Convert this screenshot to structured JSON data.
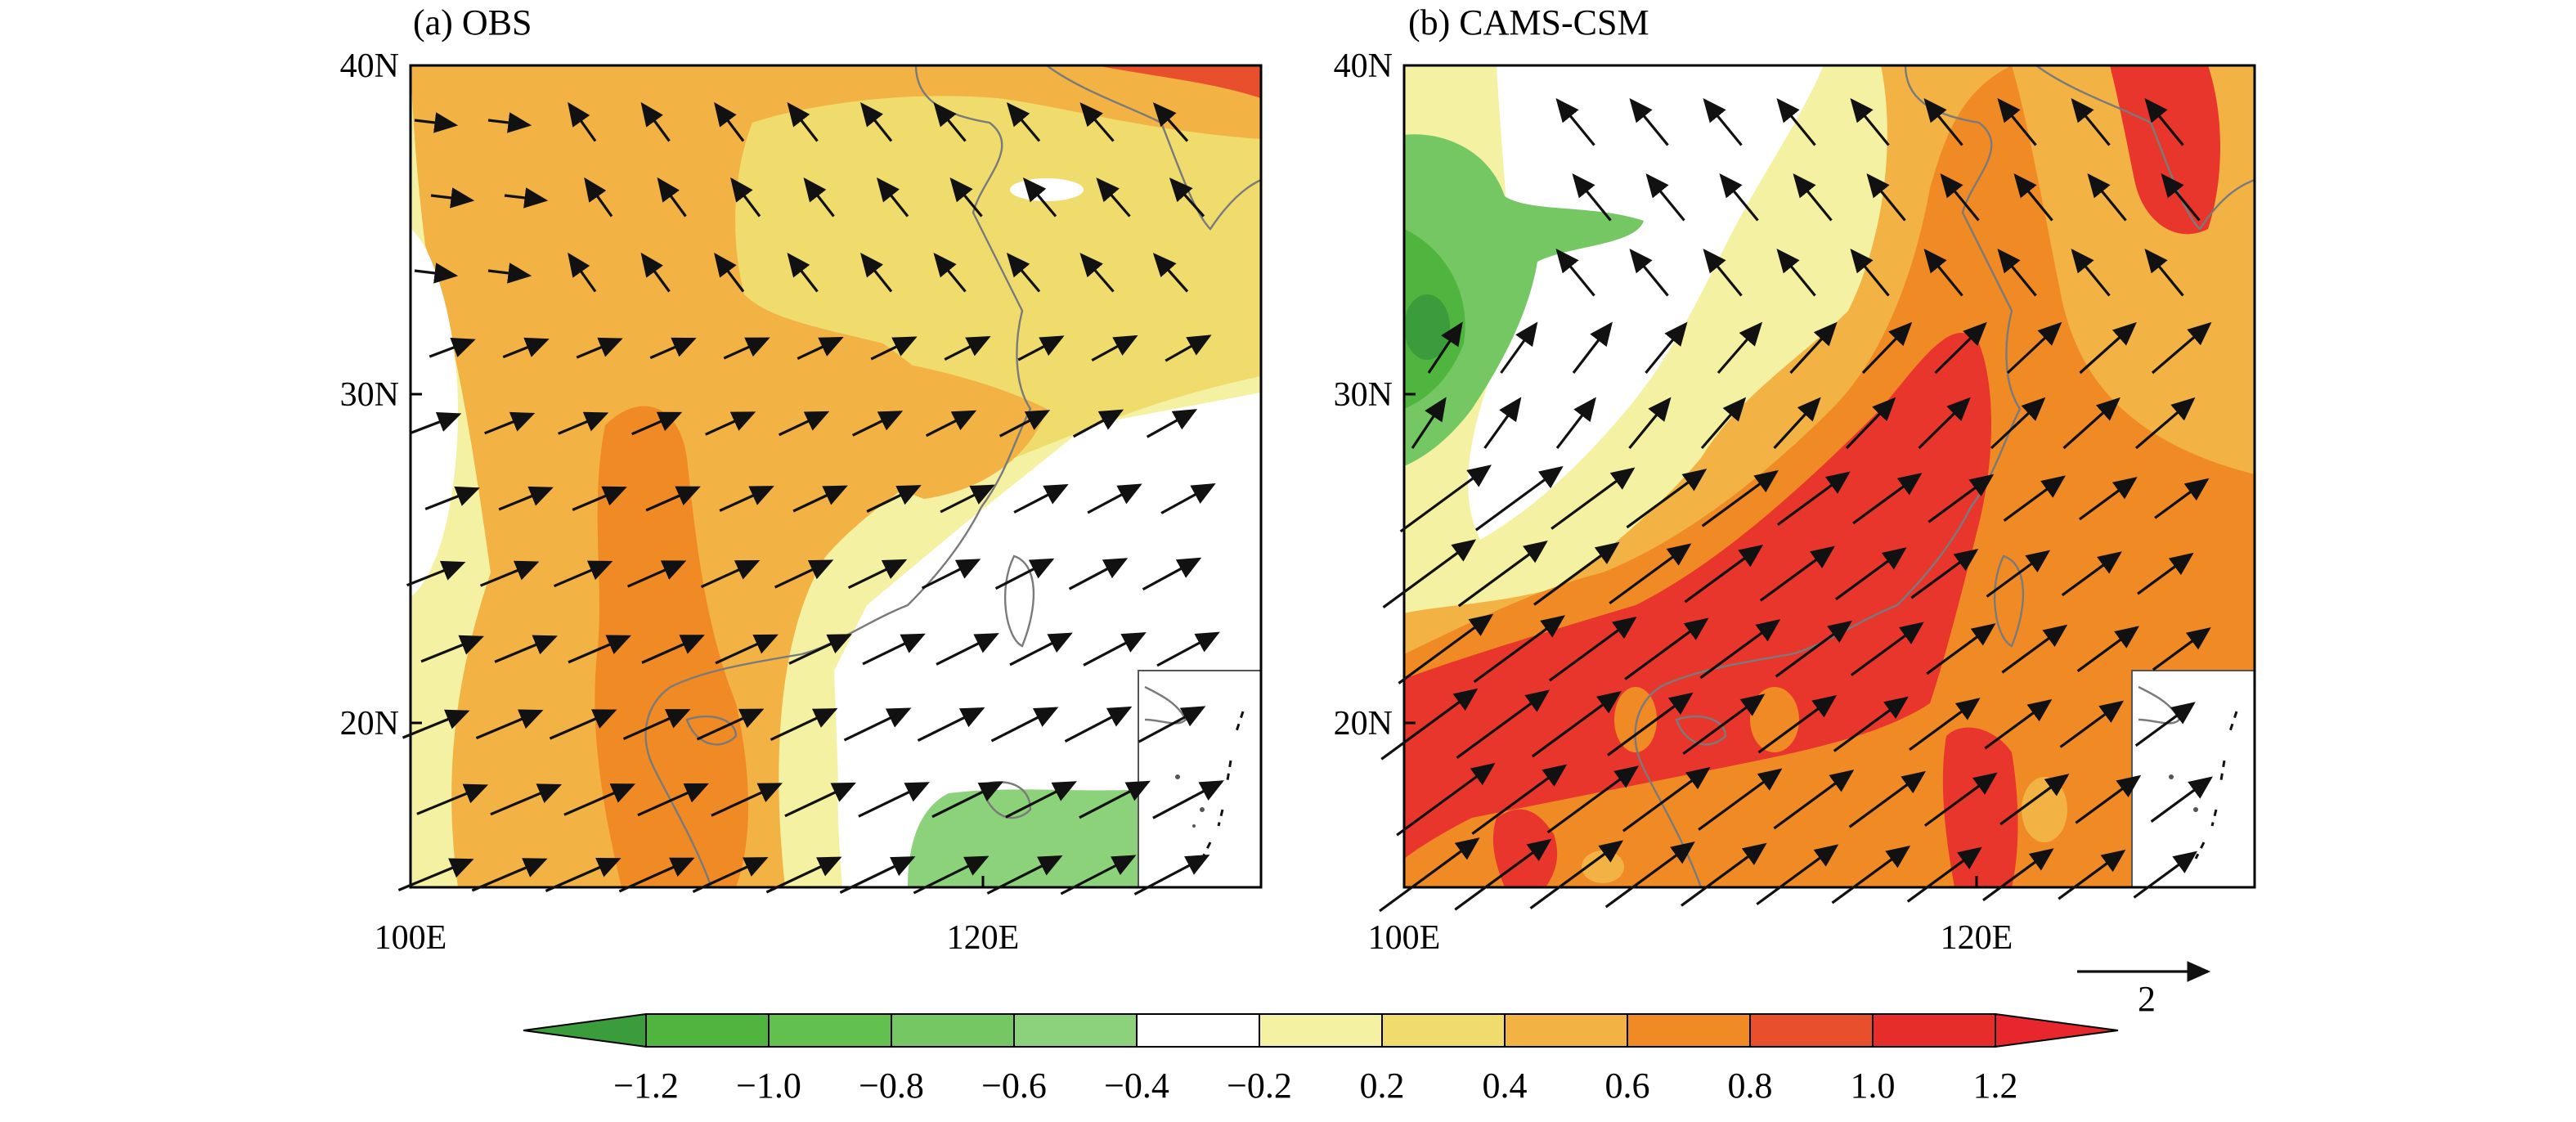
{
  "panels": [
    {
      "id": "obs",
      "title": "(a) OBS",
      "xticks": [
        "100E",
        "120E"
      ],
      "yticks": [
        "40N",
        "30N",
        "20N"
      ]
    },
    {
      "id": "cams",
      "title": "(b) CAMS-CSM",
      "xticks": [
        "100E",
        "120E"
      ],
      "yticks": [
        "40N",
        "30N",
        "20N"
      ]
    }
  ],
  "reference_vector": {
    "label": "2"
  },
  "colorbar": {
    "labels": [
      "−1.2",
      "−1.0",
      "−0.8",
      "−0.6",
      "−0.4",
      "−0.2",
      "0.2",
      "0.4",
      "0.6",
      "0.8",
      "1.0",
      "1.2"
    ],
    "colors": [
      "#3a9c3a",
      "#4fb53e",
      "#62c14e",
      "#74c763",
      "#8bd27a",
      "#ffffff",
      "#f4f1a2",
      "#f0dc6c",
      "#f2b244",
      "#f08a24",
      "#e84f2c",
      "#e62d2a",
      "#e8262e"
    ]
  },
  "fields": {
    "obs_mid": "#f2b244",
    "obs_low": "#f0dc6c",
    "obs_vlow": "#f4f1a2",
    "obs_high": "#f08a24",
    "obs_red": "#e84f2c",
    "obs_green": "#8bd27a",
    "cams_high": "#f08a24",
    "cams_red": "#e8362c",
    "cams_green1": "#74c763",
    "cams_green2": "#4fb53e",
    "cams_green3": "#3a9c3a"
  }
}
